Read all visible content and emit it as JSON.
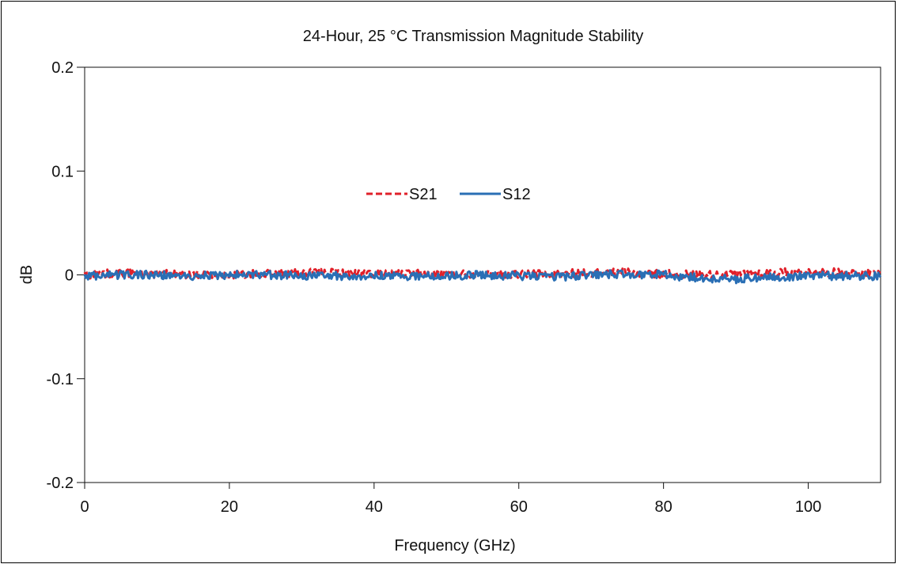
{
  "chart_data": {
    "type": "line",
    "title": "24-Hour, 25 °C Transmission Magnitude Stability",
    "xlabel": "Frequency (GHz)",
    "ylabel": "dB",
    "xlim": [
      0,
      110
    ],
    "ylim": [
      -0.2,
      0.2
    ],
    "xticks": [
      0,
      20,
      40,
      60,
      80,
      100
    ],
    "xtick_labels": [
      "0",
      "20",
      "40",
      "60",
      "80",
      "100"
    ],
    "yticks": [
      0.2,
      0.1,
      0,
      -0.1,
      -0.2
    ],
    "ytick_labels": [
      "0.2",
      "0.1",
      "0",
      "-0.1",
      "-0.2"
    ],
    "grid": false,
    "legend_position": "center",
    "series": [
      {
        "name": "S21",
        "color": "#e0202a",
        "style": "dashed",
        "x": [
          0,
          5,
          10,
          15,
          20,
          25,
          30,
          35,
          40,
          45,
          50,
          55,
          60,
          65,
          70,
          75,
          80,
          85,
          90,
          95,
          100,
          105,
          110
        ],
        "values": [
          0.0,
          0.002,
          0.001,
          0.0,
          0.0,
          0.001,
          0.002,
          0.002,
          0.001,
          0.001,
          0.001,
          0.001,
          0.001,
          0.001,
          0.002,
          0.002,
          0.001,
          0.0,
          0.001,
          0.002,
          0.003,
          0.002,
          0.001
        ]
      },
      {
        "name": "S12",
        "color": "#2a6fb5",
        "style": "solid",
        "x": [
          0,
          5,
          10,
          15,
          20,
          25,
          30,
          35,
          40,
          45,
          50,
          55,
          60,
          65,
          70,
          75,
          80,
          85,
          90,
          95,
          100,
          105,
          110
        ],
        "values": [
          -0.001,
          0.0,
          0.0,
          -0.001,
          0.0,
          0.0,
          -0.001,
          -0.001,
          -0.001,
          -0.001,
          -0.001,
          0.0,
          -0.001,
          -0.002,
          0.0,
          0.001,
          0.0,
          -0.003,
          -0.004,
          -0.002,
          -0.001,
          -0.001,
          -0.001
        ]
      }
    ]
  }
}
